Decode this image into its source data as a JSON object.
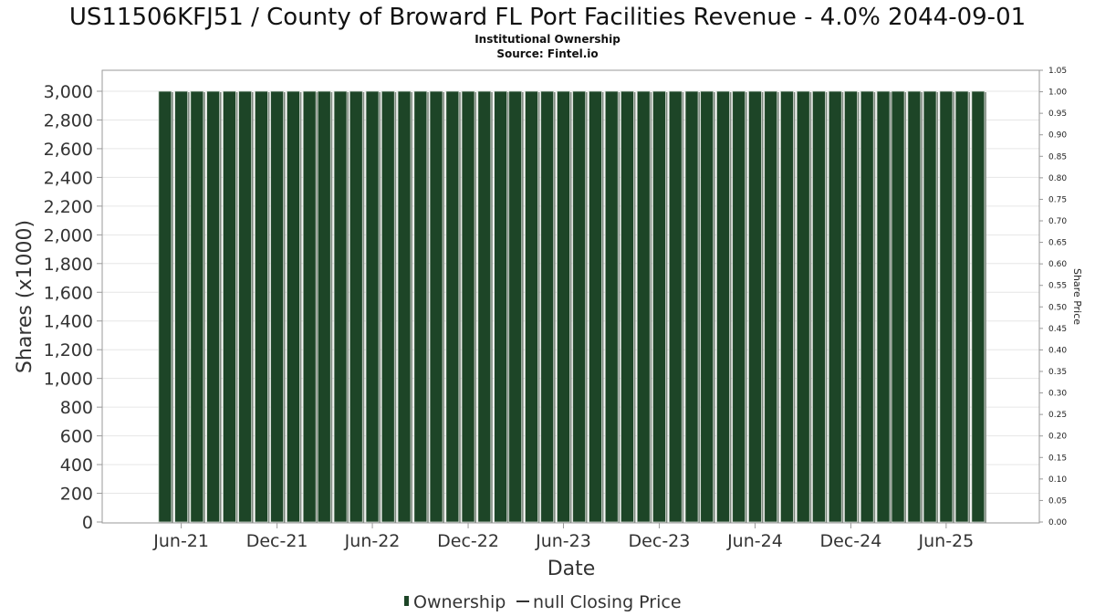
{
  "chart_data": {
    "type": "bar",
    "title": "US11506KFJ51 / County of Broward FL Port Facilities Revenue - 4.0% 2044-09-01",
    "subtitle_lines": [
      "Institutional Ownership",
      "Source: Fintel.io"
    ],
    "xlabel": "Date",
    "ylabel": "Shares (x1000)",
    "y2label": "Share Price",
    "x_ticks": [
      "Jun-21",
      "Dec-21",
      "Jun-22",
      "Dec-22",
      "Jun-23",
      "Dec-23",
      "Jun-24",
      "Dec-24",
      "Jun-25"
    ],
    "x_range": [
      "2021-01-15",
      "2025-12-10"
    ],
    "bar_dates": [
      "2021-05-15",
      "2021-06-15",
      "2021-07-15",
      "2021-08-15",
      "2021-09-15",
      "2021-10-15",
      "2021-11-15",
      "2021-12-15",
      "2022-01-15",
      "2022-02-15",
      "2022-03-15",
      "2022-04-15",
      "2022-05-15",
      "2022-06-15",
      "2022-07-15",
      "2022-08-15",
      "2022-09-15",
      "2022-10-15",
      "2022-11-15",
      "2022-12-15",
      "2023-01-15",
      "2023-02-15",
      "2023-03-15",
      "2023-04-15",
      "2023-05-15",
      "2023-06-15",
      "2023-07-15",
      "2023-08-15",
      "2023-09-15",
      "2023-10-15",
      "2023-11-15",
      "2023-12-15",
      "2024-01-15",
      "2024-02-15",
      "2024-03-15",
      "2024-04-15",
      "2024-05-15",
      "2024-06-15",
      "2024-07-15",
      "2024-08-15",
      "2024-09-15",
      "2024-10-15",
      "2024-11-15",
      "2024-12-15",
      "2025-01-15",
      "2025-02-15",
      "2025-03-15",
      "2025-04-15",
      "2025-05-15",
      "2025-06-15",
      "2025-07-15",
      "2025-08-15"
    ],
    "series": [
      {
        "name": "Ownership",
        "color": "#1d4527",
        "values": [
          3000,
          3000,
          3000,
          3000,
          3000,
          3000,
          3000,
          3000,
          3000,
          3000,
          3000,
          3000,
          3000,
          3000,
          3000,
          3000,
          3000,
          3000,
          3000,
          3000,
          3000,
          3000,
          3000,
          3000,
          3000,
          3000,
          3000,
          3000,
          3000,
          3000,
          3000,
          3000,
          3000,
          3000,
          3000,
          3000,
          3000,
          3000,
          3000,
          3000,
          3000,
          3000,
          3000,
          3000,
          3000,
          3000,
          3000,
          3000,
          3000,
          3000,
          3000,
          3000
        ]
      },
      {
        "name": "null Closing Price",
        "color": "#333333",
        "values": []
      }
    ],
    "ylim": [
      0,
      3000
    ],
    "y_ticks": [
      "0",
      "200",
      "400",
      "600",
      "800",
      "1,000",
      "1,200",
      "1,400",
      "1,600",
      "1,800",
      "2,000",
      "2,200",
      "2,400",
      "2,600",
      "2,800",
      "3,000"
    ],
    "y2lim": [
      0,
      1.05
    ],
    "y2_ticks": [
      "0.00",
      "0.05",
      "0.10",
      "0.15",
      "0.20",
      "0.25",
      "0.30",
      "0.35",
      "0.40",
      "0.45",
      "0.50",
      "0.55",
      "0.60",
      "0.65",
      "0.70",
      "0.75",
      "0.80",
      "0.85",
      "0.90",
      "0.95",
      "1.00",
      "1.05"
    ],
    "grid": true,
    "legend_position": "bottom-center"
  }
}
